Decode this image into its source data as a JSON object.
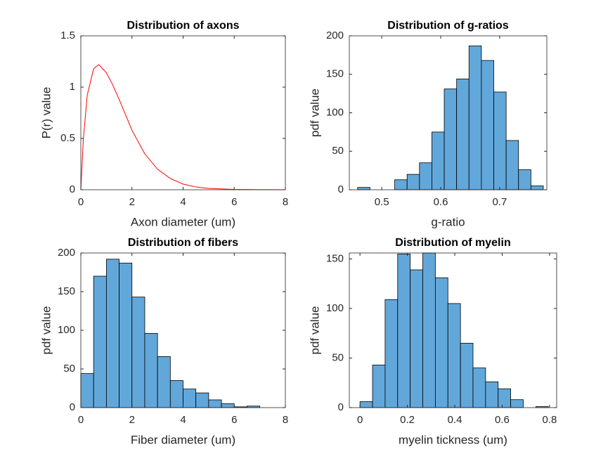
{
  "chart_data": [
    {
      "type": "line",
      "title": "Distribution of axons",
      "xlabel": "Axon diameter (um)",
      "ylabel": "P(r) value",
      "x": [
        0,
        0.1,
        0.25,
        0.5,
        0.7,
        1,
        1.25,
        1.5,
        2,
        2.5,
        3,
        3.5,
        4,
        4.5,
        5,
        6,
        7,
        8
      ],
      "values": [
        0,
        0.5,
        0.92,
        1.18,
        1.22,
        1.14,
        1.02,
        0.88,
        0.58,
        0.35,
        0.2,
        0.11,
        0.055,
        0.027,
        0.013,
        0.003,
        0.001,
        0
      ],
      "color": "#ff0000",
      "xlim": [
        0,
        8
      ],
      "ylim": [
        0,
        1.5
      ],
      "xticks": [
        0,
        2,
        4,
        6,
        8
      ],
      "yticks": [
        0,
        0.5,
        1,
        1.5
      ]
    },
    {
      "type": "histogram",
      "title": "Distribution of g-ratios",
      "xlabel": "g-ratio",
      "ylabel": "pdf value",
      "bins": [
        0.459,
        0.48,
        0.501,
        0.522,
        0.543,
        0.564,
        0.585,
        0.606,
        0.627,
        0.648,
        0.669,
        0.69,
        0.711,
        0.732,
        0.753,
        0.774
      ],
      "values": [
        3,
        0,
        0,
        13,
        20,
        35,
        75,
        131,
        144,
        187,
        168,
        127,
        64,
        26,
        5
      ],
      "color": "#62a7da",
      "xlim": [
        0.445,
        0.78
      ],
      "ylim": [
        0,
        200
      ],
      "xticks": [
        0.5,
        0.6,
        0.7
      ],
      "yticks": [
        0,
        50,
        100,
        150,
        200
      ]
    },
    {
      "type": "histogram",
      "title": "Distribution of fibers",
      "xlabel": "Fiber diameter (um)",
      "ylabel": "pdf value",
      "bins": [
        0,
        0.5,
        1,
        1.5,
        2,
        2.5,
        3,
        3.5,
        4,
        4.5,
        5,
        5.5,
        6,
        6.5,
        7
      ],
      "values": [
        44,
        170,
        192,
        187,
        143,
        96,
        66,
        35,
        24,
        19,
        10,
        5,
        1,
        2
      ],
      "color": "#62a7da",
      "xlim": [
        0,
        8
      ],
      "ylim": [
        0,
        200
      ],
      "xticks": [
        0,
        2,
        4,
        6,
        8
      ],
      "yticks": [
        0,
        50,
        100,
        150,
        200
      ]
    },
    {
      "type": "histogram",
      "title": "Distribution of myelin",
      "xlabel": "myelin tickness (um)",
      "ylabel": "pdf value",
      "bins": [
        0,
        0.053,
        0.106,
        0.159,
        0.212,
        0.265,
        0.318,
        0.371,
        0.424,
        0.477,
        0.53,
        0.583,
        0.636,
        0.689,
        0.742,
        0.795
      ],
      "values": [
        6,
        43,
        109,
        155,
        139,
        156,
        131,
        105,
        65,
        40,
        26,
        19,
        8,
        0,
        1
      ],
      "color": "#62a7da",
      "xlim": [
        -0.045,
        0.83
      ],
      "ylim": [
        0,
        156
      ],
      "xticks": [
        0,
        0.2,
        0.4,
        0.6,
        0.8
      ],
      "yticks": [
        0,
        50,
        100,
        150
      ]
    }
  ]
}
